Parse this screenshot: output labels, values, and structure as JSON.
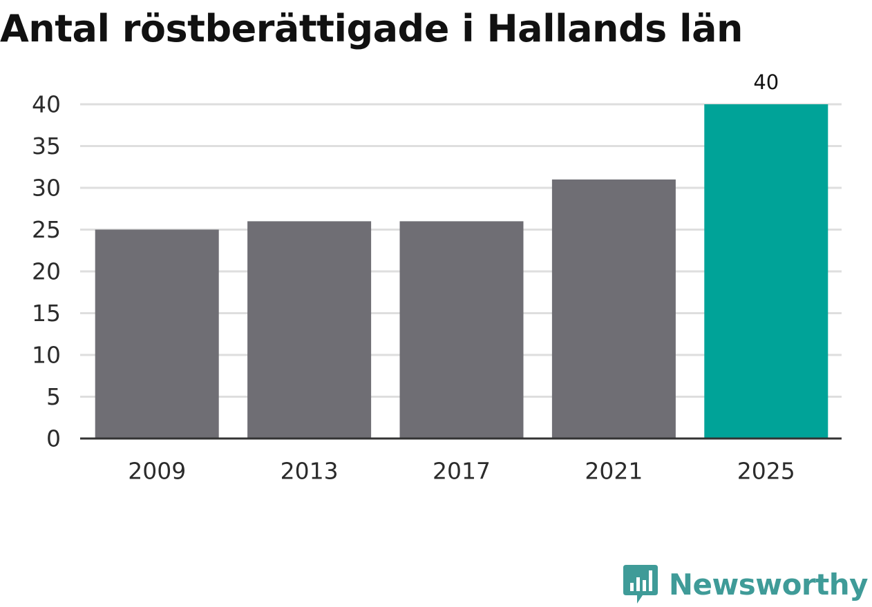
{
  "chart_data": {
    "type": "bar",
    "title": "Antal röstberättigade i Hallands län",
    "xlabel": "",
    "ylabel": "",
    "categories": [
      "2009",
      "2013",
      "2017",
      "2021",
      "2025"
    ],
    "values": [
      25,
      26,
      26,
      31,
      40
    ],
    "ylim": [
      0,
      40
    ],
    "yticks": [
      "0",
      "5",
      "10",
      "15",
      "20",
      "25",
      "30",
      "35",
      "40"
    ],
    "data_labels": [
      {
        "category": "2025",
        "text": "40"
      }
    ],
    "grid": true,
    "legend": "none",
    "colors": {
      "default_bar": "#6f6e74",
      "highlight_bar": "#00a398",
      "gridline": "#dedede",
      "axis": "#333333"
    },
    "highlight_category": "2025"
  },
  "brand": {
    "name": "Newsworthy",
    "icon": "bar-chart-speech-bubble-icon",
    "color": "#3f9b98"
  }
}
